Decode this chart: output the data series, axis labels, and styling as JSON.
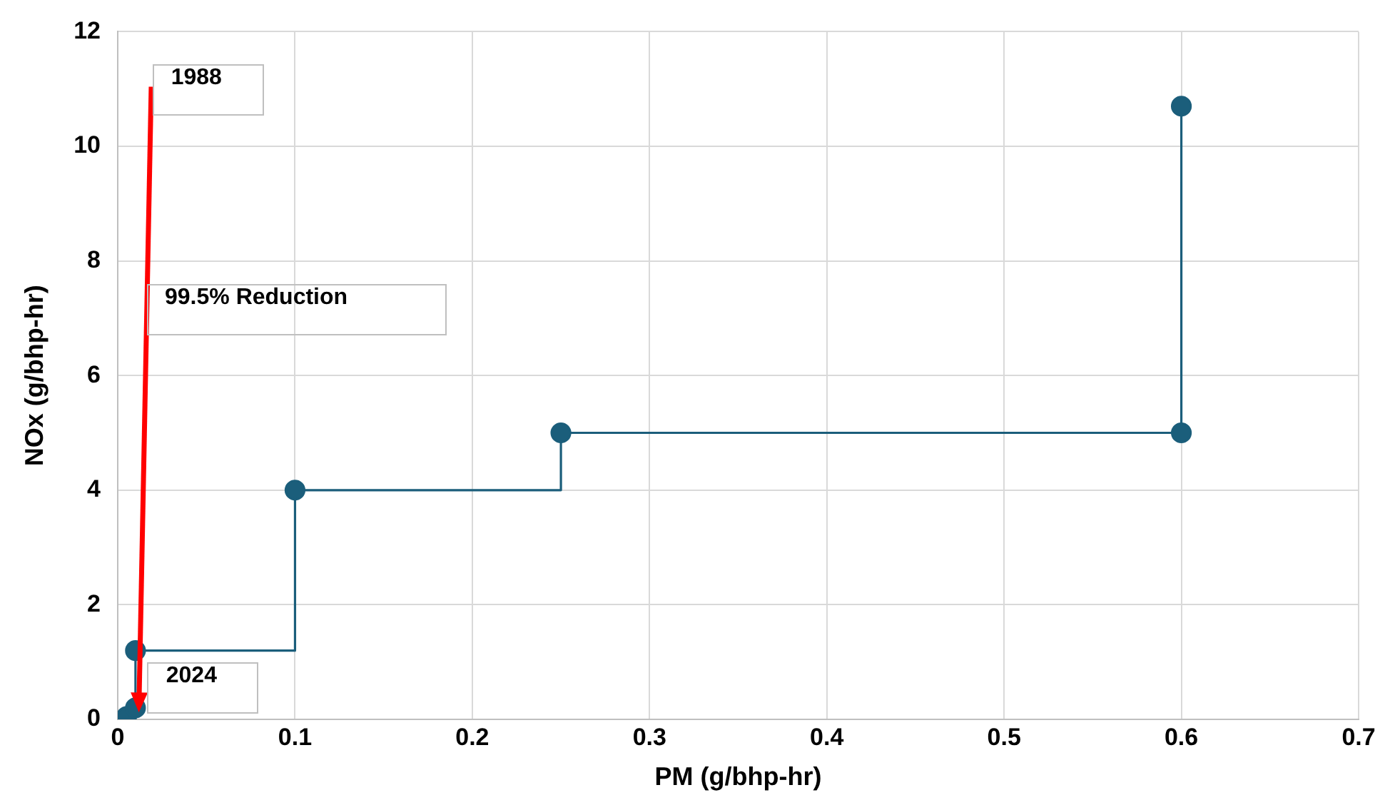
{
  "chart_data": {
    "type": "step",
    "xlabel": "PM (g/bhp-hr)",
    "ylabel": "NOx (g/bhp-hr)",
    "x": [
      0.005,
      0.01,
      0.01,
      0.1,
      0.25,
      0.6,
      0.6
    ],
    "series": [
      {
        "color": "#1b5e7b",
        "values": [
          0.05,
          0.2,
          1.2,
          4,
          5,
          5,
          10.7
        ]
      }
    ],
    "xlim": [
      0,
      0.7
    ],
    "xticks": [
      0,
      0.1,
      0.2,
      0.3,
      0.4,
      0.5,
      0.6,
      0.7
    ],
    "ylim": [
      0,
      12
    ],
    "yticks": [
      0,
      2,
      4,
      6,
      8,
      10,
      12
    ],
    "grid": true,
    "legend": false,
    "marker": "circle",
    "line_style": "solid",
    "annotations": [
      "1988",
      "99.5% Reduction",
      "2024"
    ]
  }
}
